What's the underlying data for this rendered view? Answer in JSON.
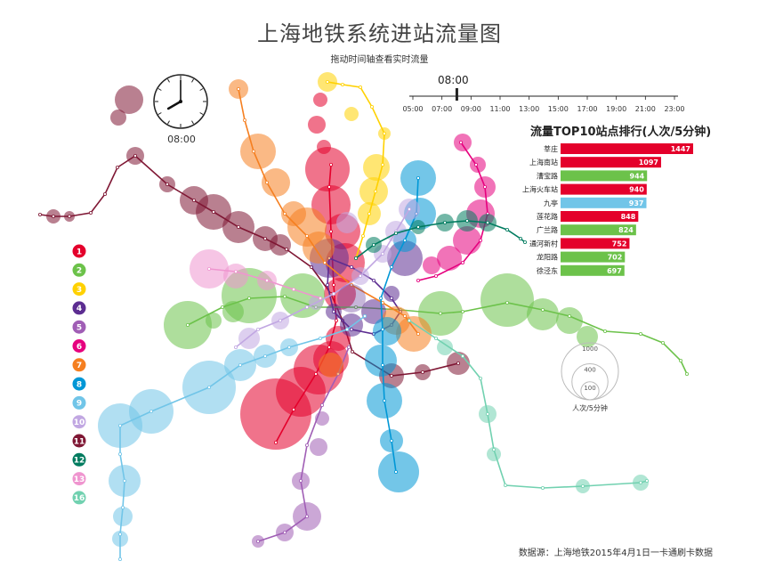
{
  "title": "上海地铁系统进站流量图",
  "subtitle": "拖动时间轴查看实时流量",
  "clock": {
    "time": "08:00",
    "hour": 8,
    "minute": 0
  },
  "timeline": {
    "current": "08:00",
    "ticks": [
      "05:00",
      "07:00",
      "09:00",
      "11:00",
      "13:00",
      "15:00",
      "17:00",
      "19:00",
      "21:00",
      "23:00"
    ],
    "current_fraction": 0.167
  },
  "line_legend": [
    {
      "label": "1",
      "color": "#e4002b"
    },
    {
      "label": "2",
      "color": "#6cc24a"
    },
    {
      "label": "3",
      "color": "#ffd100"
    },
    {
      "label": "4",
      "color": "#5c2d91"
    },
    {
      "label": "5",
      "color": "#a05eb5"
    },
    {
      "label": "6",
      "color": "#e6007e"
    },
    {
      "label": "7",
      "color": "#f57f20"
    },
    {
      "label": "8",
      "color": "#0097d6"
    },
    {
      "label": "9",
      "color": "#71c5e8"
    },
    {
      "label": "10",
      "color": "#c1a7e2"
    },
    {
      "label": "11",
      "color": "#7f1734"
    },
    {
      "label": "12",
      "color": "#007b5f"
    },
    {
      "label": "13",
      "color": "#ef95cf"
    },
    {
      "label": "16",
      "color": "#71d1b0"
    }
  ],
  "size_legend": {
    "values": [
      1000,
      400,
      100
    ],
    "unit": "人次/5分钟"
  },
  "source": "数据源：上海地铁2015年4月1日一卡通刷卡数据",
  "chart_data": {
    "type": "bar",
    "title": "流量TOP10站点排行(人次/5分钟)",
    "categories": [
      "莘庄",
      "上海南站",
      "漕宝路",
      "上海火车站",
      "九亭",
      "莲花路",
      "广兰路",
      "通河新村",
      "龙阳路",
      "徐泾东"
    ],
    "values": [
      1447,
      1097,
      944,
      940,
      937,
      848,
      824,
      752,
      702,
      697
    ],
    "bar_colors": [
      "#e4002b",
      "#e4002b",
      "#6cc24a",
      "#e4002b",
      "#71c5e8",
      "#e4002b",
      "#6cc24a",
      "#e4002b",
      "#6cc24a",
      "#6cc24a"
    ],
    "xlim": [
      0,
      1447
    ]
  }
}
